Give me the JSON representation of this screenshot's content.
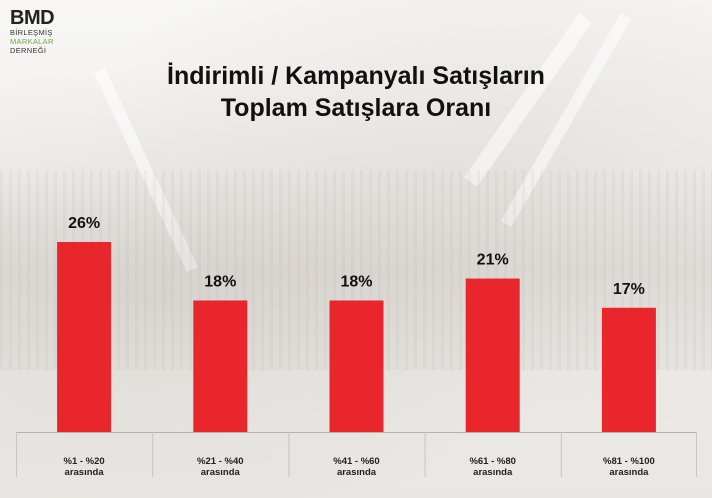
{
  "brand": {
    "logo_text": "BMD",
    "line1": "BİRLEŞMİŞ",
    "line2": "MARKALAR",
    "line3": "DERNEĞİ",
    "accent_color": "#6aa84f"
  },
  "title_line1": "İndirimli / Kampanyalı Satışların",
  "title_line2": "Toplam Satışlara Oranı",
  "chart_data": {
    "type": "bar",
    "title": "İndirimli / Kampanyalı Satışların Toplam Satışlara Oranı",
    "categories": [
      [
        "%1 - %20",
        "arasında"
      ],
      [
        "%21 - %40",
        "arasında"
      ],
      [
        "%41 - %60",
        "arasında"
      ],
      [
        "%61 - %80",
        "arasında"
      ],
      [
        "%81 - %100",
        "arasında"
      ]
    ],
    "values": [
      26,
      18,
      18,
      21,
      17
    ],
    "value_labels": [
      "26%",
      "18%",
      "18%",
      "21%",
      "17%"
    ],
    "bar_color": "#e8262b",
    "ylim": [
      0,
      26
    ],
    "grid": false,
    "legend": "none"
  }
}
